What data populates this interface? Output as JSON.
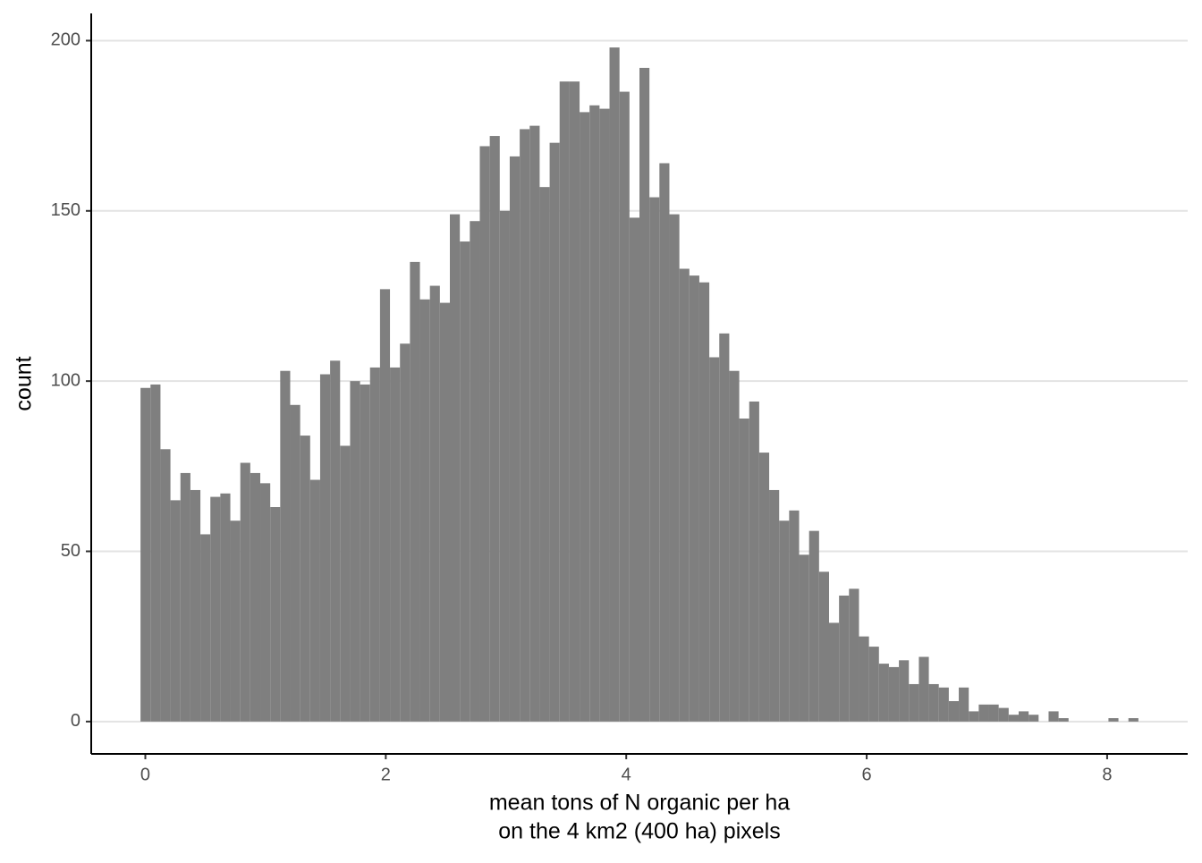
{
  "chart_data": {
    "type": "histogram",
    "xlabel": [
      "mean tons of N organic per ha",
      "on the 4 km2 (400 ha) pixels"
    ],
    "ylabel": "count",
    "bins": [
      -0.04,
      0.043,
      0.126,
      0.209,
      0.292,
      0.375,
      0.458,
      0.541,
      0.624,
      0.707,
      0.79,
      0.873,
      0.956,
      1.039,
      1.122,
      1.205,
      1.288,
      1.371,
      1.454,
      1.537,
      1.62,
      1.703,
      1.786,
      1.869,
      1.952,
      2.035,
      2.118,
      2.201,
      2.284,
      2.367,
      2.45,
      2.533,
      2.616,
      2.699,
      2.782,
      2.865,
      2.948,
      3.031,
      3.114,
      3.197,
      3.28,
      3.363,
      3.446,
      3.529,
      3.612,
      3.695,
      3.778,
      3.861,
      3.944,
      4.027,
      4.11,
      4.193,
      4.276,
      4.359,
      4.442,
      4.525,
      4.608,
      4.691,
      4.774,
      4.857,
      4.94,
      5.023,
      5.106,
      5.189,
      5.272,
      5.355,
      5.438,
      5.521,
      5.604,
      5.687,
      5.77,
      5.853,
      5.936,
      6.019,
      6.102,
      6.185,
      6.268,
      6.351,
      6.434,
      6.517,
      6.6,
      6.683,
      6.766,
      6.849,
      6.932,
      7.015,
      7.098,
      7.181,
      7.264,
      7.347,
      7.43,
      7.513,
      7.596,
      7.679,
      7.762,
      7.845,
      7.928,
      8.011,
      8.094,
      8.177,
      8.26
    ],
    "values": [
      98,
      99,
      80,
      65,
      73,
      68,
      55,
      66,
      67,
      59,
      76,
      73,
      70,
      63,
      103,
      93,
      84,
      71,
      102,
      106,
      81,
      100,
      99,
      104,
      127,
      104,
      111,
      135,
      124,
      128,
      123,
      149,
      141,
      147,
      169,
      172,
      150,
      166,
      174,
      175,
      157,
      170,
      188,
      188,
      179,
      181,
      180,
      198,
      185,
      148,
      192,
      154,
      164,
      149,
      133,
      131,
      129,
      107,
      114,
      103,
      89,
      94,
      79,
      68,
      59,
      62,
      49,
      56,
      44,
      29,
      37,
      39,
      25,
      22,
      17,
      16,
      18,
      11,
      19,
      11,
      10,
      6,
      10,
      3,
      5,
      5,
      4,
      2,
      3,
      2,
      0,
      3,
      1,
      0,
      0,
      0,
      0,
      1,
      0,
      1
    ],
    "color": "#7f7f7f",
    "xlim": [
      -0.45,
      8.67
    ],
    "xticks": [
      0,
      2,
      4,
      6,
      8
    ],
    "ylim": [
      -9.5,
      208
    ],
    "yticks": [
      0,
      50,
      100,
      150,
      200
    ],
    "grid": true
  }
}
